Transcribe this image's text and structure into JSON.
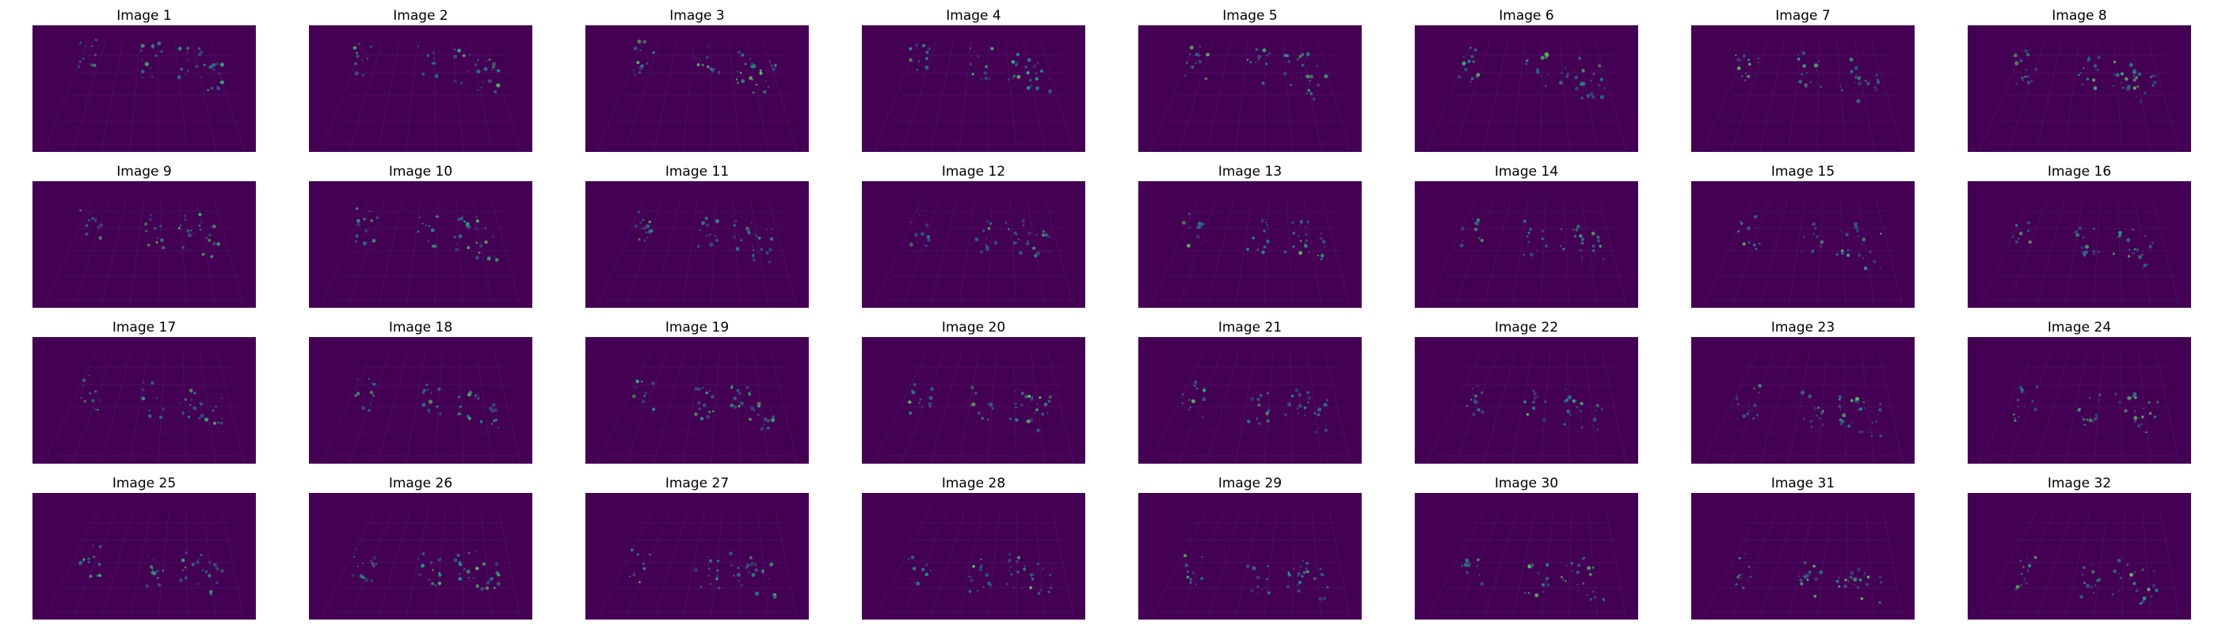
{
  "figure": {
    "background": "#ffffff",
    "panel_color": "#440154",
    "rows": 4,
    "columns": 8,
    "colormap": "viridis",
    "axes_visible": false
  },
  "panels": [
    {
      "title": "Image 1"
    },
    {
      "title": "Image 2"
    },
    {
      "title": "Image 3"
    },
    {
      "title": "Image 4"
    },
    {
      "title": "Image 5"
    },
    {
      "title": "Image 6"
    },
    {
      "title": "Image 7"
    },
    {
      "title": "Image 8"
    },
    {
      "title": "Image 9"
    },
    {
      "title": "Image 10"
    },
    {
      "title": "Image 11"
    },
    {
      "title": "Image 12"
    },
    {
      "title": "Image 13"
    },
    {
      "title": "Image 14"
    },
    {
      "title": "Image 15"
    },
    {
      "title": "Image 16"
    },
    {
      "title": "Image 17"
    },
    {
      "title": "Image 18"
    },
    {
      "title": "Image 19"
    },
    {
      "title": "Image 20"
    },
    {
      "title": "Image 21"
    },
    {
      "title": "Image 22"
    },
    {
      "title": "Image 23"
    },
    {
      "title": "Image 24"
    },
    {
      "title": "Image 25"
    },
    {
      "title": "Image 26"
    },
    {
      "title": "Image 27"
    },
    {
      "title": "Image 28"
    },
    {
      "title": "Image 29"
    },
    {
      "title": "Image 30"
    },
    {
      "title": "Image 31"
    },
    {
      "title": "Image 32"
    }
  ]
}
